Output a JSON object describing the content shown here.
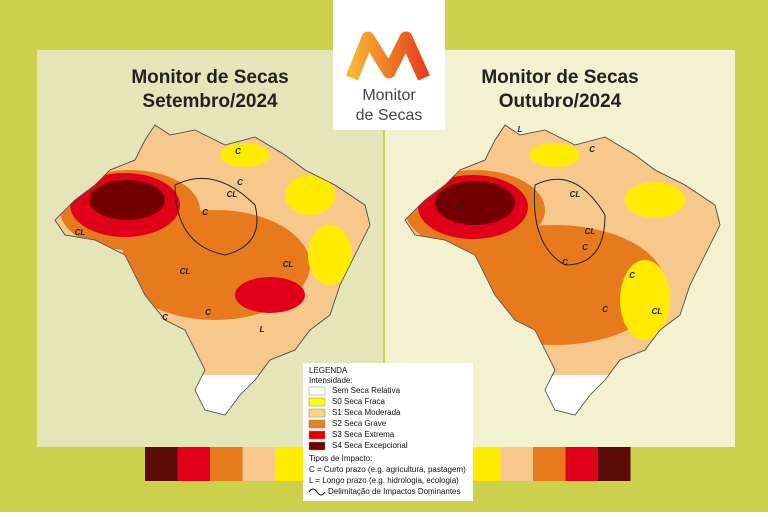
{
  "logo": {
    "line1": "Monitor",
    "line2": "de Secas"
  },
  "maps": [
    {
      "title_line1": "Monitor de Secas",
      "title_line2": "Setembro/2024",
      "labels": [
        "C",
        "C",
        "CL",
        "C",
        "CL",
        "CL",
        "C",
        "C",
        "CL",
        "L"
      ]
    },
    {
      "title_line1": "Monitor de Secas",
      "title_line2": "Outubro/2024",
      "labels": [
        "L",
        "C",
        "C",
        "CL",
        "C",
        "C",
        "CL",
        "C",
        "C",
        "CL"
      ]
    }
  ],
  "legend": {
    "title": "LEGENDA",
    "intensity_title": "Intensidade:",
    "items": [
      {
        "label": "Sem Seca Relativa",
        "color": "#ffffff"
      },
      {
        "label": "S0 Seca Fraca",
        "color": "#ffff00"
      },
      {
        "label": "S1 Seca Moderada",
        "color": "#fcd37f"
      },
      {
        "label": "S2 Seca Grave",
        "color": "#e8801c"
      },
      {
        "label": "S3 Seca Extrema",
        "color": "#e60000"
      },
      {
        "label": "S4 Seca Excepcional",
        "color": "#730000"
      }
    ],
    "impact_title": "Tipos de Impacto:",
    "impact_items": [
      "C = Curto prazo (e.g. agricultura, pastagem)",
      "L = Longo prazo (e.g. hidrologia, ecologia)"
    ],
    "delimitation": "Delimitação de Impactos Dominantes"
  },
  "strip_colors": [
    "#5c0a0a",
    "#e0001a",
    "#e87a1e",
    "#f7c88c",
    "#ffeb00"
  ]
}
